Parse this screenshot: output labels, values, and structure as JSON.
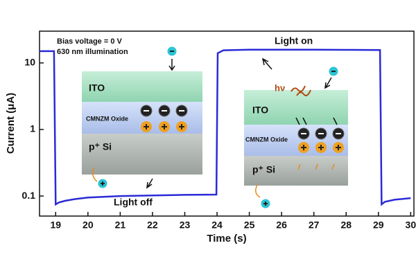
{
  "chart_data": {
    "type": "line",
    "xlabel": "Time (s)",
    "ylabel": "Current (μA)",
    "x": [
      18.5,
      18.95,
      19.0,
      19.1,
      19.3,
      19.6,
      20,
      21,
      22,
      23,
      23.98,
      24.02,
      24.2,
      25,
      26,
      27,
      28,
      29.05,
      29.1,
      29.2,
      29.5,
      30
    ],
    "values": [
      15,
      15,
      0.075,
      0.08,
      0.085,
      0.09,
      0.095,
      0.1,
      0.102,
      0.104,
      0.105,
      14,
      15.5,
      15.8,
      15.8,
      15.8,
      15.7,
      15.6,
      0.075,
      0.082,
      0.088,
      0.093
    ],
    "color": "#2a2ad8",
    "log_y": true,
    "xlim": [
      18.5,
      30.1
    ],
    "xticks": [
      19,
      20,
      21,
      22,
      23,
      24,
      25,
      26,
      27,
      28,
      29,
      30
    ],
    "ylim": [
      0.05,
      30
    ],
    "yticks": [
      0.1,
      1,
      10
    ],
    "annotations": [
      "Bias voltage = 0 V",
      "630 nm illumination",
      "Light on",
      "Light off"
    ],
    "insets": [
      {
        "layers": [
          "ITO",
          "CMNZM Oxide",
          "p⁺ Si"
        ]
      },
      {
        "layers": [
          "ITO",
          "CMNZM Oxide",
          "p⁺ Si"
        ],
        "label": "hν"
      }
    ]
  }
}
